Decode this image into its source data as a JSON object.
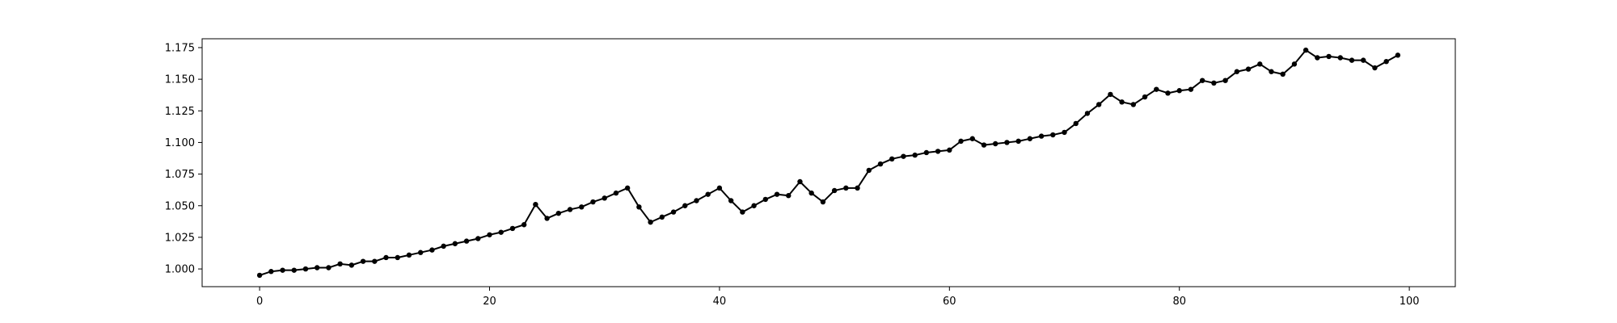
{
  "chart_data": {
    "type": "line",
    "title": "",
    "xlabel": "",
    "ylabel": "",
    "xlim": [
      -5,
      104
    ],
    "ylim": [
      0.986,
      1.182
    ],
    "x_ticks": [
      0,
      20,
      40,
      60,
      80,
      100
    ],
    "x_tick_labels": [
      "0",
      "20",
      "40",
      "60",
      "80",
      "100"
    ],
    "y_ticks": [
      1.0,
      1.025,
      1.05,
      1.075,
      1.1,
      1.125,
      1.15,
      1.175
    ],
    "y_tick_labels": [
      "1.000",
      "1.025",
      "1.050",
      "1.075",
      "1.100",
      "1.125",
      "1.150",
      "1.175"
    ],
    "grid": false,
    "legend": "none",
    "colors": {
      "line": "#000000",
      "marker": "#000000",
      "axes": "#000000"
    },
    "series": [
      {
        "marker": "circle",
        "x": [
          0,
          1,
          2,
          3,
          4,
          5,
          6,
          7,
          8,
          9,
          10,
          11,
          12,
          13,
          14,
          15,
          16,
          17,
          18,
          19,
          20,
          21,
          22,
          23,
          24,
          25,
          26,
          27,
          28,
          29,
          30,
          31,
          32,
          33,
          34,
          35,
          36,
          37,
          38,
          39,
          40,
          41,
          42,
          43,
          44,
          45,
          46,
          47,
          48,
          49,
          50,
          51,
          52,
          53,
          54,
          55,
          56,
          57,
          58,
          59,
          60,
          61,
          62,
          63,
          64,
          65,
          66,
          67,
          68,
          69,
          70,
          71,
          72,
          73,
          74,
          75,
          76,
          77,
          78,
          79,
          80,
          81,
          82,
          83,
          84,
          85,
          86,
          87,
          88,
          89,
          90,
          91,
          92,
          93,
          94,
          95,
          96,
          97,
          98,
          99
        ],
        "values": [
          0.995,
          0.998,
          0.999,
          0.999,
          1.0,
          1.001,
          1.001,
          1.004,
          1.003,
          1.006,
          1.006,
          1.009,
          1.009,
          1.011,
          1.013,
          1.015,
          1.018,
          1.02,
          1.022,
          1.024,
          1.027,
          1.029,
          1.032,
          1.035,
          1.051,
          1.04,
          1.044,
          1.047,
          1.049,
          1.053,
          1.056,
          1.06,
          1.064,
          1.049,
          1.037,
          1.041,
          1.045,
          1.05,
          1.054,
          1.059,
          1.064,
          1.054,
          1.045,
          1.05,
          1.055,
          1.059,
          1.058,
          1.069,
          1.06,
          1.053,
          1.062,
          1.064,
          1.064,
          1.078,
          1.083,
          1.087,
          1.089,
          1.09,
          1.092,
          1.093,
          1.094,
          1.101,
          1.103,
          1.098,
          1.099,
          1.1,
          1.101,
          1.103,
          1.105,
          1.106,
          1.108,
          1.115,
          1.123,
          1.13,
          1.138,
          1.132,
          1.13,
          1.136,
          1.142,
          1.139,
          1.141,
          1.142,
          1.149,
          1.147,
          1.149,
          1.156,
          1.158,
          1.162,
          1.156,
          1.154,
          1.162,
          1.173,
          1.167,
          1.168,
          1.167,
          1.165,
          1.165,
          1.159,
          1.164,
          1.169
        ]
      }
    ]
  }
}
